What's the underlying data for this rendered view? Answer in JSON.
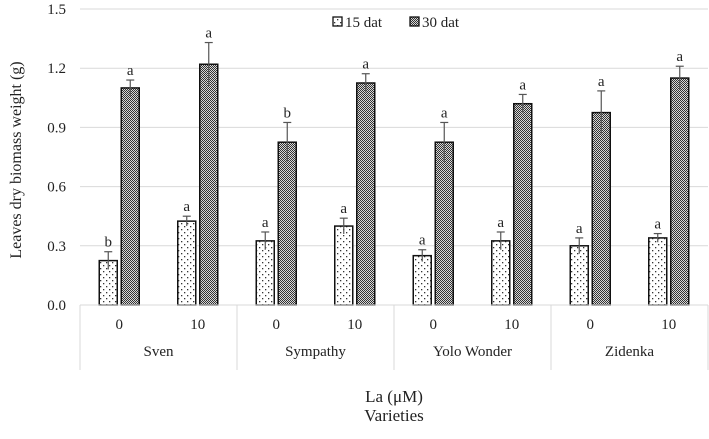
{
  "chart_data": {
    "type": "bar",
    "title": "",
    "ylabel": "Leaves dry biomass weight  (g)",
    "xlabel_lines": [
      "La (μM)",
      "Varieties"
    ],
    "ylim": [
      0,
      1.5
    ],
    "yticks": [
      "0.0",
      "0.3",
      "0.6",
      "0.9",
      "1.2",
      "1.5"
    ],
    "ytick_values": [
      0,
      0.3,
      0.6,
      0.9,
      1.2,
      1.5
    ],
    "grid": true,
    "legend_position": "top-center",
    "groups": [
      "Sven",
      "Sympathy",
      "Yolo Wonder",
      "Zidenka"
    ],
    "categories": [
      "0",
      "10",
      "0",
      "10",
      "0",
      "10",
      "0",
      "10"
    ],
    "series": [
      {
        "name": "15 dat",
        "fill": "dots",
        "values": [
          0.225,
          0.425,
          0.325,
          0.4,
          0.25,
          0.325,
          0.3,
          0.34
        ],
        "errors": [
          0.045,
          0.025,
          0.045,
          0.04,
          0.03,
          0.045,
          0.04,
          0.022
        ],
        "letters": [
          "b",
          "a",
          "a",
          "a",
          "a",
          "a",
          "a",
          "a"
        ]
      },
      {
        "name": "30 dat",
        "fill": "checker",
        "values": [
          1.1,
          1.22,
          0.825,
          1.125,
          0.825,
          1.02,
          0.975,
          1.15
        ],
        "errors": [
          0.04,
          0.11,
          0.1,
          0.047,
          0.1,
          0.047,
          0.11,
          0.06
        ],
        "letters": [
          "a",
          "a",
          "b",
          "a",
          "a",
          "a",
          "a",
          "a"
        ]
      }
    ]
  }
}
